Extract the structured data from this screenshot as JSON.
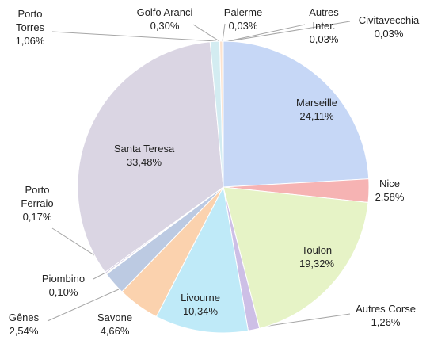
{
  "chart_data": {
    "type": "pie",
    "categories": [
      "Marseille",
      "Nice",
      "Toulon",
      "Autres Corse",
      "Livourne",
      "Savone",
      "Gênes",
      "Piombino",
      "Porto Ferraio",
      "Santa Teresa",
      "Porto Torres",
      "Golfo Aranci",
      "Palerme",
      "Autres Inter.",
      "Civitavecchia"
    ],
    "values": [
      24.11,
      2.58,
      19.32,
      1.26,
      10.34,
      4.66,
      2.54,
      0.1,
      0.17,
      33.48,
      1.06,
      0.3,
      0.03,
      0.03,
      0.03
    ],
    "value_labels": [
      "24,11%",
      "2,58%",
      "19,32%",
      "1,26%",
      "10,34%",
      "4,66%",
      "2,54%",
      "0,10%",
      "0,17%",
      "33,48%",
      "1,06%",
      "0,30%",
      "0,03%",
      "0,03%",
      "0,03%"
    ],
    "colors": [
      "#c6d7f6",
      "#f6b3b3",
      "#e6f3c6",
      "#cdbfe6",
      "#bfeaf8",
      "#fbd2ae",
      "#bccae2",
      "#d6e6c1",
      "#cfc6df",
      "#dad5e3",
      "#d3ecf1",
      "#fce3cf",
      "#f2b8b6",
      "#d8e6bb",
      "#bfb2d5"
    ]
  }
}
